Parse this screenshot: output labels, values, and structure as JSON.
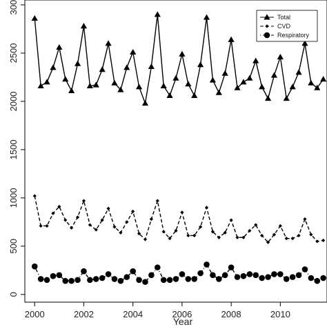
{
  "chart_data": {
    "type": "line",
    "title": "",
    "xlabel": "Year",
    "ylabel": "",
    "xlim": [
      1999.6,
      2011.9
    ],
    "ylim": [
      -80,
      3050
    ],
    "x_ticks": [
      "2000",
      "2002",
      "2004",
      "2006",
      "2008",
      "2010"
    ],
    "y_ticks": [
      "0",
      "500",
      "1000",
      "1500",
      "2000",
      "2500",
      "3000"
    ],
    "grid": false,
    "legend_position": "top-right",
    "x": [
      2000.0,
      2000.25,
      2000.5,
      2000.75,
      2001.0,
      2001.25,
      2001.5,
      2001.75,
      2002.0,
      2002.25,
      2002.5,
      2002.75,
      2003.0,
      2003.25,
      2003.5,
      2003.75,
      2004.0,
      2004.25,
      2004.5,
      2004.75,
      2005.0,
      2005.25,
      2005.5,
      2005.75,
      2006.0,
      2006.25,
      2006.5,
      2006.75,
      2007.0,
      2007.25,
      2007.5,
      2007.75,
      2008.0,
      2008.25,
      2008.5,
      2008.75,
      2009.0,
      2009.25,
      2009.5,
      2009.75,
      2010.0,
      2010.25,
      2010.5,
      2010.75,
      2011.0,
      2011.25,
      2011.5,
      2011.75
    ],
    "series": [
      {
        "name": "Total",
        "marker": "triangle",
        "line": "solid",
        "values": [
          2860,
          2160,
          2200,
          2350,
          2560,
          2230,
          2110,
          2390,
          2780,
          2160,
          2170,
          2330,
          2600,
          2190,
          2120,
          2350,
          2510,
          2150,
          1980,
          2360,
          2900,
          2160,
          2060,
          2240,
          2490,
          2180,
          2060,
          2380,
          2870,
          2220,
          2090,
          2290,
          2640,
          2140,
          2200,
          2240,
          2420,
          2150,
          2030,
          2270,
          2460,
          2030,
          2150,
          2300,
          2600,
          2190,
          2140,
          2230
        ]
      },
      {
        "name": "CVD",
        "marker": "diamond",
        "line": "dashed",
        "values": [
          1020,
          710,
          710,
          840,
          910,
          770,
          690,
          800,
          970,
          720,
          670,
          770,
          890,
          700,
          640,
          750,
          860,
          630,
          570,
          780,
          970,
          650,
          580,
          660,
          850,
          610,
          610,
          700,
          900,
          650,
          590,
          640,
          770,
          590,
          590,
          660,
          720,
          610,
          540,
          620,
          710,
          580,
          580,
          610,
          780,
          620,
          550,
          560
        ]
      },
      {
        "name": "Respiratory",
        "marker": "circle",
        "line": "dotdash",
        "values": [
          290,
          160,
          150,
          190,
          200,
          140,
          140,
          150,
          240,
          150,
          160,
          170,
          210,
          160,
          140,
          180,
          240,
          150,
          130,
          200,
          280,
          150,
          150,
          160,
          210,
          160,
          160,
          220,
          310,
          200,
          160,
          200,
          280,
          180,
          190,
          210,
          200,
          170,
          180,
          210,
          210,
          160,
          180,
          200,
          260,
          170,
          140,
          170
        ]
      }
    ]
  }
}
